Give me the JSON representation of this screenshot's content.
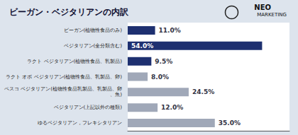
{
  "chart_data": {
    "type": "bar",
    "orientation": "horizontal",
    "title": "ビーガン・ベジタリアンの内訳",
    "annotations": [
      "NEO",
      "MARKETING"
    ],
    "categories": [
      "ビーガン(植物性食品のみ)",
      "ベジタリアン(全分類含む)",
      "ラクト ベジタリアン(植物性食品、乳製品)",
      "ラクト オボ ベジタリアン(植物性食品、乳製品、卵)",
      "ペスコ ベジタリアン(植物性食品乳製品、乳製品、卵、魚)",
      "ベジタリアン(上記以外の種類)",
      "ゆるベジタリアン，フレキシタリアン"
    ],
    "values": [
      11.0,
      54.0,
      9.5,
      8.0,
      24.5,
      12.0,
      35.0
    ],
    "value_labels": [
      "11.0%",
      "54.0%",
      "9.5%",
      "8.0%",
      "24.5%",
      "12.0%",
      "35.0%"
    ],
    "colors": [
      "#1e3070",
      "#1e3070",
      "#1e3070",
      "#a0a8b8",
      "#a0a8b8",
      "#a0a8b8",
      "#a0a8b8"
    ],
    "xlim": [
      0,
      65
    ],
    "data_labels": true,
    "tick_labels": false,
    "grid": false
  }
}
